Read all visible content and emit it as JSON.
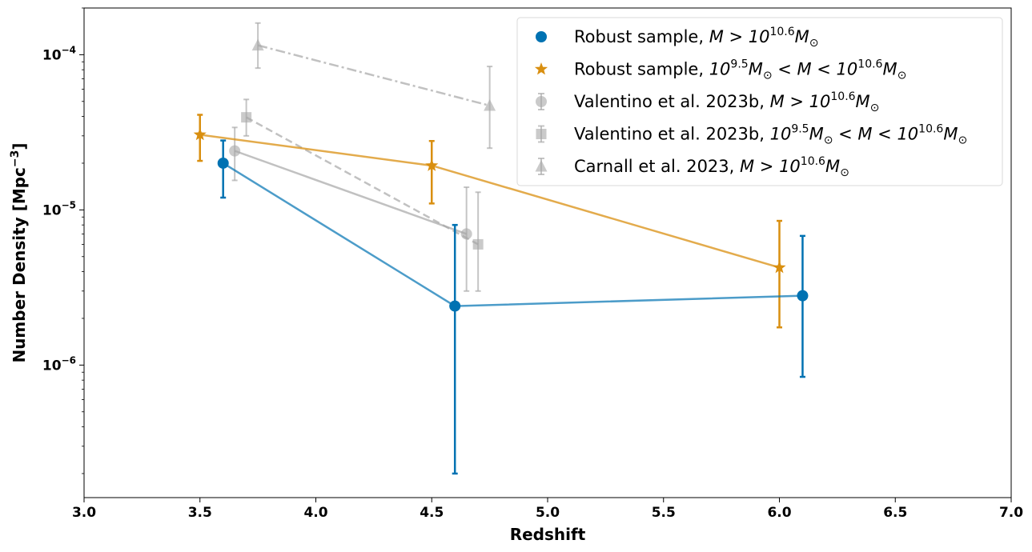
{
  "chart_data": {
    "type": "line",
    "xlabel": "Redshift",
    "ylabel": "Number Density [Mpc",
    "ylabel_sup": "−3",
    "ylabel_end": "]",
    "xlim": [
      3.0,
      7.0
    ],
    "ylim": [
      1.4e-07,
      0.0002
    ],
    "yscale": "log",
    "legend_position": "top-right",
    "x_ticks": [
      {
        "value": 3.0,
        "label": "3.0"
      },
      {
        "value": 3.5,
        "label": "3.5"
      },
      {
        "value": 4.0,
        "label": "4.0"
      },
      {
        "value": 4.5,
        "label": "4.5"
      },
      {
        "value": 5.0,
        "label": "5.0"
      },
      {
        "value": 5.5,
        "label": "5.5"
      },
      {
        "value": 6.0,
        "label": "6.0"
      },
      {
        "value": 6.5,
        "label": "6.5"
      },
      {
        "value": 7.0,
        "label": "7.0"
      }
    ],
    "y_ticks": [
      {
        "value": 1e-06,
        "base": "10",
        "exp": "−6"
      },
      {
        "value": 1e-05,
        "base": "10",
        "exp": "−5"
      },
      {
        "value": 0.0001,
        "base": "10",
        "exp": "−4"
      }
    ],
    "series": [
      {
        "name": "Robust sample, M > 10^10.6 M☉",
        "legend": {
          "pre": "Robust sample, ",
          "math": [
            [
              "M > 10",
              ""
            ],
            [
              "10.6",
              "sup"
            ],
            [
              "M",
              ""
            ],
            [
              "⊙",
              "sub"
            ]
          ]
        },
        "color": "#0072B2",
        "marker": "circle",
        "line_style": "solid",
        "opacity": 1.0,
        "line_opacity": 0.7,
        "points": [
          {
            "x": 3.6,
            "y": 2e-05,
            "lo": 1.2e-05,
            "hi": 2.8e-05
          },
          {
            "x": 4.6,
            "y": 2.4e-06,
            "lo": 2e-07,
            "hi": 8e-06
          },
          {
            "x": 6.1,
            "y": 2.8e-06,
            "lo": 8.4e-07,
            "hi": 6.8e-06
          }
        ]
      },
      {
        "name": "Robust sample, 10^9.5 M☉ < M < 10^10.6 M☉",
        "legend": {
          "pre": "Robust sample, ",
          "math": [
            [
              "10",
              ""
            ],
            [
              "9.5",
              "sup"
            ],
            [
              "M",
              ""
            ],
            [
              "⊙",
              "sub"
            ],
            [
              " < M < 10",
              ""
            ],
            [
              "10.6",
              "sup"
            ],
            [
              "M",
              ""
            ],
            [
              "⊙",
              "sub"
            ]
          ]
        },
        "color": "#D98F10",
        "marker": "star",
        "line_style": "solid",
        "opacity": 1.0,
        "line_opacity": 0.75,
        "points": [
          {
            "x": 3.5,
            "y": 3.05e-05,
            "lo": 2.07e-05,
            "hi": 4.1e-05
          },
          {
            "x": 4.5,
            "y": 1.93e-05,
            "lo": 1.1e-05,
            "hi": 2.78e-05
          },
          {
            "x": 6.0,
            "y": 4.25e-06,
            "lo": 1.75e-06,
            "hi": 8.5e-06
          }
        ]
      },
      {
        "name": "Valentino et al. 2023b, M > 10^10.6 M☉",
        "legend": {
          "pre": "Valentino et al. 2023b, ",
          "math": [
            [
              "M > 10",
              ""
            ],
            [
              "10.6",
              "sup"
            ],
            [
              "M",
              ""
            ],
            [
              "⊙",
              "sub"
            ]
          ]
        },
        "color": "#a6a6a6",
        "marker": "circle",
        "line_style": "solid",
        "opacity": 0.6,
        "line_opacity": 0.7,
        "points": [
          {
            "x": 3.65,
            "y": 2.4e-05,
            "lo": 1.55e-05,
            "hi": 3.4e-05
          },
          {
            "x": 4.65,
            "y": 7e-06,
            "lo": 3e-06,
            "hi": 1.4e-05
          }
        ]
      },
      {
        "name": "Valentino et al. 2023b, 10^9.5 M☉ < M < 10^10.6 M☉",
        "legend": {
          "pre": "Valentino et al. 2023b, ",
          "math": [
            [
              "10",
              ""
            ],
            [
              "9.5",
              "sup"
            ],
            [
              "M",
              ""
            ],
            [
              "⊙",
              "sub"
            ],
            [
              " < M < 10",
              ""
            ],
            [
              "10.6",
              "sup"
            ],
            [
              "M",
              ""
            ],
            [
              "⊙",
              "sub"
            ]
          ]
        },
        "color": "#a6a6a6",
        "marker": "square",
        "line_style": "dashed",
        "opacity": 0.6,
        "line_opacity": 0.7,
        "points": [
          {
            "x": 3.7,
            "y": 3.95e-05,
            "lo": 3e-05,
            "hi": 5.15e-05
          },
          {
            "x": 4.7,
            "y": 6e-06,
            "lo": 3e-06,
            "hi": 1.3e-05
          }
        ]
      },
      {
        "name": "Carnall et al. 2023, M > 10^10.6 M☉",
        "legend": {
          "pre": "Carnall et al. 2023, ",
          "math": [
            [
              "M > 10",
              ""
            ],
            [
              "10.6",
              "sup"
            ],
            [
              "M",
              ""
            ],
            [
              "⊙",
              "sub"
            ]
          ]
        },
        "color": "#a6a6a6",
        "marker": "triangle",
        "line_style": "dashdot",
        "opacity": 0.6,
        "line_opacity": 0.7,
        "points": [
          {
            "x": 3.75,
            "y": 0.000115,
            "lo": 8.2e-05,
            "hi": 0.00016
          },
          {
            "x": 4.75,
            "y": 4.7e-05,
            "lo": 2.5e-05,
            "hi": 8.4e-05
          }
        ]
      }
    ]
  }
}
